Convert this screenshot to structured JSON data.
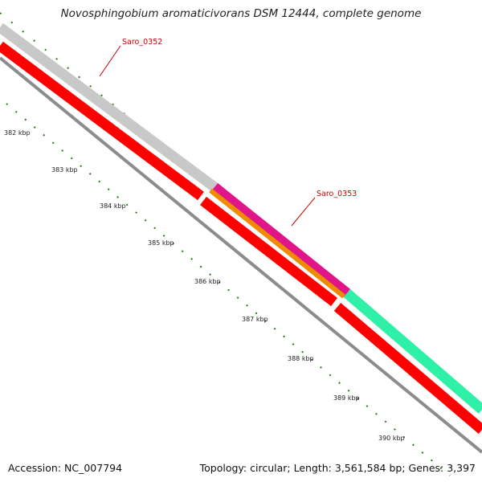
{
  "title": "Novosphingobium aromaticivorans DSM 12444, complete genome",
  "footer": {
    "accession": "Accession: NC_007794",
    "stats": "Topology: circular; Length: 3,561,584 bp; Genes: 3,397"
  },
  "gene_labels": [
    {
      "name": "Saro_0352",
      "color": "#cc0000"
    },
    {
      "name": "Saro_0353",
      "color": "#cc0000"
    }
  ],
  "kbp_ticks": [
    "382 kbp",
    "383 kbp",
    "384 kbp",
    "385 kbp",
    "386 kbp",
    "387 kbp",
    "388 kbp",
    "389 kbp",
    "390 kbp"
  ],
  "colors": {
    "forward_tick": "#2a7a18",
    "hypothetical_gene": "#c8c8c8",
    "magenta_gene": "#e0158a",
    "green_gene": "#2ef0a6",
    "orange_gene": "#f08a00",
    "cds_red": "#ff0000",
    "backbone": "#8c8c8c"
  }
}
